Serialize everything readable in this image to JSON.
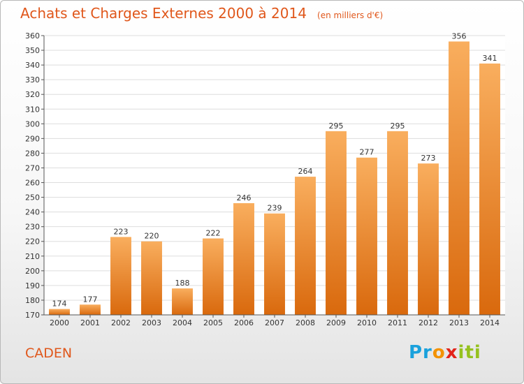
{
  "header": {
    "title": "Achats et Charges Externes 2000 à 2014",
    "subtitle": "(en milliers d'€)"
  },
  "footer": {
    "commune": "CADEN",
    "logo_parts": [
      "Pr",
      "o",
      "x",
      "iti"
    ]
  },
  "colors": {
    "title": "#e0571b",
    "bar_light": "#f9ae5e",
    "bar_dark": "#d9690d",
    "grid": "#dddddd"
  },
  "chart_data": {
    "type": "bar",
    "categories": [
      "2000",
      "2001",
      "2002",
      "2003",
      "2004",
      "2005",
      "2006",
      "2007",
      "2008",
      "2009",
      "2010",
      "2011",
      "2012",
      "2013",
      "2014"
    ],
    "values": [
      174,
      177,
      223,
      220,
      188,
      222,
      246,
      239,
      264,
      295,
      277,
      295,
      273,
      356,
      341
    ],
    "yticks": [
      170,
      180,
      190,
      200,
      210,
      220,
      230,
      240,
      250,
      260,
      270,
      280,
      290,
      300,
      310,
      320,
      330,
      340,
      350,
      360
    ],
    "ylim": [
      170,
      360
    ],
    "grid": true,
    "legend": "none"
  }
}
